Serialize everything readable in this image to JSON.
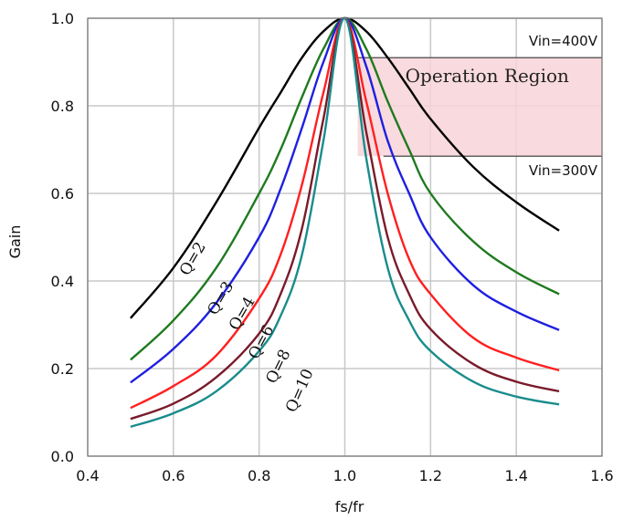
{
  "chart_data": {
    "type": "line",
    "xlabel": "fs/fr",
    "ylabel": "Gain",
    "xlim": [
      0.4,
      1.6
    ],
    "ylim": [
      0.0,
      1.0
    ],
    "x_ticks": [
      "0.4",
      "0.6",
      "0.8",
      "1.0",
      "1.2",
      "1.4",
      "1.6"
    ],
    "y_ticks": [
      "0.0",
      "0.2",
      "0.4",
      "0.6",
      "0.8",
      "1.0"
    ],
    "grid": true,
    "series": [
      {
        "name": "Q=2",
        "color": "#000000",
        "points": [
          [
            0.5,
            0.315
          ],
          [
            0.6,
            0.43
          ],
          [
            0.7,
            0.58
          ],
          [
            0.8,
            0.75
          ],
          [
            0.85,
            0.83
          ],
          [
            0.9,
            0.91
          ],
          [
            0.95,
            0.97
          ],
          [
            1.0,
            1.0
          ],
          [
            1.05,
            0.97
          ],
          [
            1.1,
            0.91
          ],
          [
            1.15,
            0.84
          ],
          [
            1.2,
            0.77
          ],
          [
            1.3,
            0.66
          ],
          [
            1.4,
            0.58
          ],
          [
            1.5,
            0.515
          ]
        ]
      },
      {
        "name": "Q=3",
        "color": "#1f7a1f",
        "points": [
          [
            0.5,
            0.22
          ],
          [
            0.6,
            0.31
          ],
          [
            0.7,
            0.43
          ],
          [
            0.8,
            0.6
          ],
          [
            0.85,
            0.7
          ],
          [
            0.9,
            0.82
          ],
          [
            0.95,
            0.93
          ],
          [
            1.0,
            1.0
          ],
          [
            1.05,
            0.93
          ],
          [
            1.1,
            0.81
          ],
          [
            1.15,
            0.7
          ],
          [
            1.2,
            0.6
          ],
          [
            1.3,
            0.49
          ],
          [
            1.4,
            0.42
          ],
          [
            1.5,
            0.37
          ]
        ]
      },
      {
        "name": "Q=4",
        "color": "#1f1fe0",
        "points": [
          [
            0.5,
            0.168
          ],
          [
            0.6,
            0.245
          ],
          [
            0.7,
            0.35
          ],
          [
            0.8,
            0.5
          ],
          [
            0.85,
            0.61
          ],
          [
            0.9,
            0.75
          ],
          [
            0.95,
            0.9
          ],
          [
            1.0,
            1.0
          ],
          [
            1.05,
            0.89
          ],
          [
            1.1,
            0.72
          ],
          [
            1.15,
            0.6
          ],
          [
            1.2,
            0.5
          ],
          [
            1.3,
            0.39
          ],
          [
            1.4,
            0.33
          ],
          [
            1.5,
            0.288
          ]
        ]
      },
      {
        "name": "Q=6",
        "color": "#ff2020",
        "points": [
          [
            0.5,
            0.11
          ],
          [
            0.6,
            0.16
          ],
          [
            0.7,
            0.23
          ],
          [
            0.8,
            0.36
          ],
          [
            0.85,
            0.46
          ],
          [
            0.9,
            0.62
          ],
          [
            0.95,
            0.83
          ],
          [
            1.0,
            1.0
          ],
          [
            1.05,
            0.81
          ],
          [
            1.1,
            0.6
          ],
          [
            1.15,
            0.45
          ],
          [
            1.2,
            0.37
          ],
          [
            1.3,
            0.27
          ],
          [
            1.4,
            0.225
          ],
          [
            1.5,
            0.196
          ]
        ]
      },
      {
        "name": "Q=8",
        "color": "#7a1a2a",
        "points": [
          [
            0.5,
            0.085
          ],
          [
            0.6,
            0.12
          ],
          [
            0.7,
            0.18
          ],
          [
            0.8,
            0.28
          ],
          [
            0.85,
            0.37
          ],
          [
            0.9,
            0.52
          ],
          [
            0.95,
            0.77
          ],
          [
            1.0,
            1.0
          ],
          [
            1.05,
            0.74
          ],
          [
            1.1,
            0.5
          ],
          [
            1.15,
            0.37
          ],
          [
            1.2,
            0.29
          ],
          [
            1.3,
            0.21
          ],
          [
            1.4,
            0.17
          ],
          [
            1.5,
            0.148
          ]
        ]
      },
      {
        "name": "Q=10",
        "color": "#1a8c8c",
        "points": [
          [
            0.5,
            0.067
          ],
          [
            0.6,
            0.098
          ],
          [
            0.7,
            0.148
          ],
          [
            0.8,
            0.24
          ],
          [
            0.85,
            0.32
          ],
          [
            0.9,
            0.46
          ],
          [
            0.95,
            0.72
          ],
          [
            1.0,
            1.0
          ],
          [
            1.05,
            0.68
          ],
          [
            1.1,
            0.43
          ],
          [
            1.15,
            0.31
          ],
          [
            1.2,
            0.24
          ],
          [
            1.3,
            0.17
          ],
          [
            1.4,
            0.136
          ],
          [
            1.5,
            0.118
          ]
        ]
      }
    ],
    "annotations": {
      "region_label": "Operation Region",
      "region_x": [
        1.03,
        1.6
      ],
      "region_y": [
        0.685,
        0.91
      ],
      "vin_high_label": "Vin=400V",
      "vin_low_label": "Vin=300V"
    },
    "curve_labels": [
      {
        "text": "Q=2",
        "x": 0.655,
        "y": 0.445,
        "angle": -60
      },
      {
        "text": "Q=3",
        "x": 0.72,
        "y": 0.355,
        "angle": -60
      },
      {
        "text": "Q=4",
        "x": 0.77,
        "y": 0.32,
        "angle": -60
      },
      {
        "text": "Q=6",
        "x": 0.815,
        "y": 0.255,
        "angle": -62
      },
      {
        "text": "Q=8",
        "x": 0.855,
        "y": 0.2,
        "angle": -64
      },
      {
        "text": "Q=10",
        "x": 0.905,
        "y": 0.145,
        "angle": -66
      }
    ]
  }
}
